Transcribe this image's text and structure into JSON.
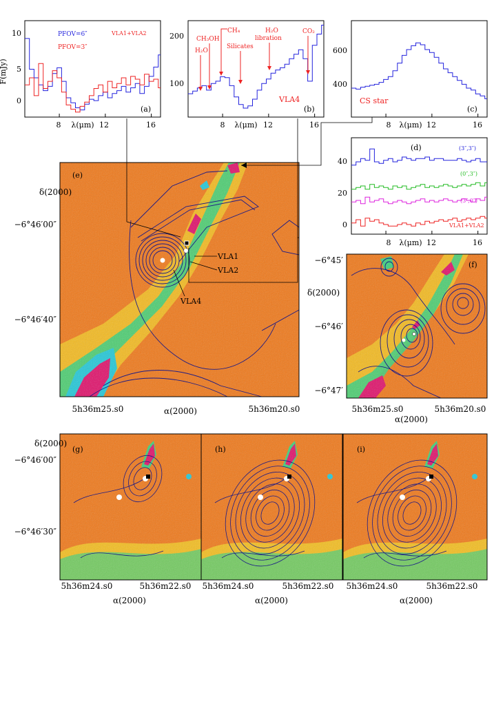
{
  "colors": {
    "blue": "#2222dd",
    "red": "#ee2222",
    "green": "#22bb22",
    "magenta": "#dd22dd",
    "contour": "#1a1a88",
    "heat_bg": "#f07818",
    "heat_green": "#3ad07a",
    "heat_cyan": "#22c8d8",
    "heat_magenta": "#e0106a"
  },
  "spectra_axis": {
    "x_label": "λ(μm)",
    "x_ticks": [
      "8",
      "12",
      "16"
    ],
    "y_label": "F(mJy)"
  },
  "panels": {
    "a": {
      "label": "(a)",
      "y_ticks": [
        "0",
        "5",
        "10"
      ],
      "legend": [
        "PFOV=6″",
        "PFOV=3″"
      ],
      "annotation": "VLA1+VLA2"
    },
    "b": {
      "label": "(b)",
      "y_ticks": [
        "100",
        "200"
      ],
      "features": [
        "H₂O",
        "CH₃OH",
        "CH₄",
        "Silicates",
        "H₂O",
        "libration",
        "CO₂"
      ],
      "source": "VLA4"
    },
    "c": {
      "label": "(c)",
      "y_ticks": [
        "400",
        "600"
      ],
      "source": "CS star"
    },
    "d": {
      "label": "(d)",
      "y_ticks": [
        "0",
        "20",
        "40"
      ],
      "offsets": [
        "(3″,3″)",
        "(0″,3″)",
        "(3″,0″)"
      ],
      "annotation": "VLA1+VLA2"
    },
    "e": {
      "label": "(e)",
      "y_title": "δ(2000)",
      "x_title": "α(2000)",
      "dec_ticks": [
        "−6°46′00″",
        "−6°46′40″"
      ],
      "ra_ticks": [
        "5h36m25.s0",
        "5h36m20.s0"
      ],
      "sources": [
        "VLA1",
        "VLA2",
        "VLA4"
      ]
    },
    "f": {
      "label": "(f)",
      "y_title": "δ(2000)",
      "x_title": "α(2000)",
      "dec_ticks": [
        "−6°45′",
        "−6°46′",
        "−6°47′"
      ],
      "ra_ticks": [
        "5h36m25.s0",
        "5h36m20.s0"
      ]
    },
    "g": {
      "label": "(g)"
    },
    "h": {
      "label": "(h)"
    },
    "i": {
      "label": "(i)"
    },
    "bottom": {
      "y_title": "δ(2000)",
      "x_title": "α(2000)",
      "dec_ticks": [
        "−6°46′00″",
        "−6°46′30″"
      ],
      "ra_ticks": [
        "5h36m24.s0",
        "5h36m22.s0"
      ]
    }
  },
  "chart_data": [
    {
      "type": "line",
      "panel": "a",
      "xlabel": "λ(μm)",
      "ylabel": "F(mJy)",
      "xlim": [
        5,
        16.8
      ],
      "ylim": [
        -1.5,
        12
      ],
      "series": [
        {
          "name": "PFOV=6″",
          "x": [
            5.0,
            5.4,
            5.8,
            6.2,
            6.6,
            7.0,
            7.4,
            7.8,
            8.2,
            8.6,
            9.0,
            9.4,
            9.8,
            10.2,
            10.6,
            11.0,
            11.4,
            11.8,
            12.2,
            12.6,
            13.0,
            13.4,
            13.8,
            14.2,
            14.6,
            15.0,
            15.4,
            15.8,
            16.2,
            16.6
          ],
          "y": [
            9.5,
            5.2,
            4.0,
            3.0,
            2.2,
            2.8,
            4.6,
            5.4,
            3.5,
            1.2,
            0.5,
            -0.2,
            -0.5,
            0.3,
            1.0,
            0.8,
            1.5,
            2.0,
            1.2,
            1.8,
            2.2,
            2.8,
            2.0,
            2.6,
            3.2,
            1.8,
            2.8,
            4.2,
            5.5,
            7.2
          ]
        },
        {
          "name": "PFOV=3″",
          "x": [
            5.0,
            5.4,
            5.8,
            6.2,
            6.6,
            7.0,
            7.4,
            7.8,
            8.2,
            8.6,
            9.0,
            9.4,
            9.8,
            10.2,
            10.6,
            11.0,
            11.4,
            11.8,
            12.2,
            12.6,
            13.0,
            13.4,
            13.8,
            14.2,
            14.6,
            15.0,
            15.4,
            15.8,
            16.2,
            16.6
          ],
          "y": [
            3.0,
            4.0,
            1.5,
            6.0,
            2.5,
            3.5,
            5.0,
            4.0,
            2.0,
            0.2,
            -0.4,
            -0.8,
            0.0,
            0.6,
            1.5,
            2.5,
            3.0,
            2.0,
            3.5,
            2.6,
            3.2,
            4.0,
            3.0,
            4.2,
            3.8,
            3.0,
            4.5,
            3.5,
            3.8,
            2.6
          ]
        }
      ]
    },
    {
      "type": "line",
      "panel": "b",
      "xlabel": "λ(μm)",
      "xlim": [
        5,
        16.8
      ],
      "ylim": [
        20,
        235
      ],
      "series": [
        {
          "x": [
            5.0,
            5.4,
            5.8,
            6.2,
            6.6,
            7.0,
            7.4,
            7.8,
            8.2,
            8.6,
            9.0,
            9.4,
            9.8,
            10.2,
            10.6,
            11.0,
            11.4,
            11.8,
            12.2,
            12.6,
            13.0,
            13.4,
            13.8,
            14.2,
            14.6,
            15.0,
            15.4,
            15.8,
            16.2,
            16.6
          ],
          "y": [
            72,
            78,
            85,
            90,
            80,
            95,
            100,
            110,
            108,
            90,
            65,
            48,
            40,
            45,
            60,
            80,
            95,
            105,
            118,
            125,
            130,
            138,
            150,
            160,
            170,
            150,
            100,
            180,
            205,
            225
          ]
        }
      ]
    },
    {
      "type": "line",
      "panel": "c",
      "xlabel": "λ(μm)",
      "xlim": [
        5,
        16.8
      ],
      "ylim": [
        250,
        750
      ],
      "series": [
        {
          "x": [
            5.0,
            5.4,
            5.8,
            6.2,
            6.6,
            7.0,
            7.4,
            7.8,
            8.2,
            8.6,
            9.0,
            9.4,
            9.8,
            10.2,
            10.6,
            11.0,
            11.4,
            11.8,
            12.2,
            12.6,
            13.0,
            13.4,
            13.8,
            14.2,
            14.6,
            15.0,
            15.4,
            15.8,
            16.2,
            16.6
          ],
          "y": [
            400,
            395,
            405,
            410,
            415,
            420,
            430,
            445,
            460,
            490,
            530,
            570,
            600,
            620,
            635,
            625,
            600,
            585,
            560,
            530,
            500,
            480,
            460,
            440,
            420,
            400,
            390,
            370,
            360,
            345
          ]
        }
      ]
    },
    {
      "type": "line",
      "panel": "d",
      "xlabel": "λ(μm)",
      "xlim": [
        5,
        16.8
      ],
      "ylim": [
        -5,
        55
      ],
      "series": [
        {
          "name": "(3″,3″)",
          "x": [
            5.0,
            5.4,
            5.8,
            6.2,
            6.6,
            7.0,
            7.4,
            7.8,
            8.2,
            8.6,
            9.0,
            9.4,
            9.8,
            10.2,
            10.6,
            11.0,
            11.4,
            11.8,
            12.2,
            12.6,
            13.0,
            13.4,
            13.8,
            14.2,
            14.6,
            15.0,
            15.4,
            15.8,
            16.2,
            16.6
          ],
          "y": [
            38,
            40,
            42,
            41,
            48,
            40,
            39,
            41,
            42,
            40,
            41,
            43,
            42,
            41,
            42,
            42,
            43,
            41,
            42,
            42,
            41,
            41,
            41,
            42,
            41,
            40,
            41,
            42,
            40,
            40
          ]
        },
        {
          "name": "(0″,3″)",
          "x": [
            5.0,
            5.4,
            5.8,
            6.2,
            6.6,
            7.0,
            7.4,
            7.8,
            8.2,
            8.6,
            9.0,
            9.4,
            9.8,
            10.2,
            10.6,
            11.0,
            11.4,
            11.8,
            12.2,
            12.6,
            13.0,
            13.4,
            13.8,
            14.2,
            14.6,
            15.0,
            15.4,
            15.8,
            16.2,
            16.6
          ],
          "y": [
            23,
            24,
            25,
            23,
            26,
            24,
            25,
            24,
            23,
            25,
            24,
            25,
            23,
            24,
            25,
            26,
            24,
            25,
            24,
            25,
            26,
            25,
            24,
            25,
            26,
            25,
            26,
            27,
            25,
            27
          ]
        },
        {
          "name": "(3″,0″)",
          "x": [
            5.0,
            5.4,
            5.8,
            6.2,
            6.6,
            7.0,
            7.4,
            7.8,
            8.2,
            8.6,
            9.0,
            9.4,
            9.8,
            10.2,
            10.6,
            11.0,
            11.4,
            11.8,
            12.2,
            12.6,
            13.0,
            13.4,
            13.8,
            14.2,
            14.6,
            15.0,
            15.4,
            15.8,
            16.2,
            16.6
          ],
          "y": [
            15,
            16,
            14,
            18,
            15,
            16,
            17,
            15,
            14,
            15,
            16,
            15,
            14,
            15,
            16,
            17,
            15,
            16,
            15,
            16,
            17,
            16,
            15,
            16,
            17,
            16,
            15,
            17,
            16,
            18
          ]
        },
        {
          "name": "VLA1+VLA2",
          "x": [
            5.0,
            5.4,
            5.8,
            6.2,
            6.6,
            7.0,
            7.4,
            7.8,
            8.2,
            8.6,
            9.0,
            9.4,
            9.8,
            10.2,
            10.6,
            11.0,
            11.4,
            11.8,
            12.2,
            12.6,
            13.0,
            13.4,
            13.8,
            14.2,
            14.6,
            15.0,
            15.4,
            15.8,
            16.2,
            16.6
          ],
          "y": [
            2,
            4,
            0,
            5,
            3,
            4,
            2,
            1,
            0,
            0,
            1,
            2,
            1,
            0,
            2,
            1,
            3,
            2,
            3,
            4,
            3,
            4,
            5,
            3,
            4,
            5,
            4,
            5,
            6,
            5
          ]
        }
      ]
    }
  ]
}
